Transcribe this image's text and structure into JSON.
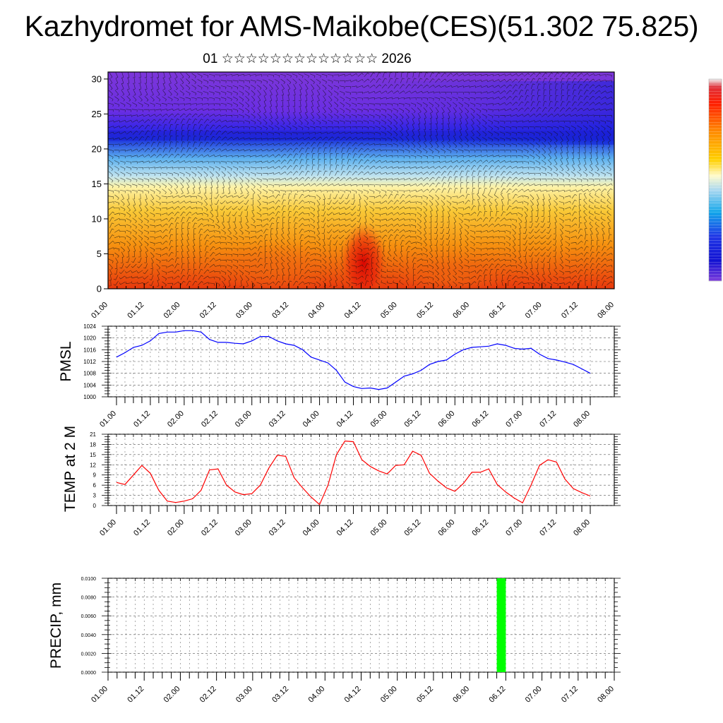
{
  "title": "Kazhydromet for AMS-Maikobe(CES)(51.302 75.825)",
  "subtitle": "01 ☆☆☆☆☆☆☆☆☆☆☆☆☆ 2026",
  "time_tick_labels": [
    "01.00",
    "01.12",
    "02.00",
    "02.12",
    "03.00",
    "03.12",
    "04.00",
    "04.12",
    "05.00",
    "05.12",
    "06.00",
    "06.12",
    "07.00",
    "07.12",
    "08.00"
  ],
  "colors": {
    "pmsl_line": "#0000ff",
    "temp_line": "#ff0000",
    "precip_bar": "#00ff00"
  },
  "chart_data": [
    {
      "type": "heatmap",
      "name": "vertical cross-section",
      "title": "",
      "xlabel": "",
      "ylabel": "",
      "x_ticks": [
        "01.00",
        "01.12",
        "02.00",
        "02.12",
        "03.00",
        "03.12",
        "04.00",
        "04.12",
        "05.00",
        "05.12",
        "06.00",
        "06.12",
        "07.00",
        "07.12",
        "08.00"
      ],
      "y_ticks": [
        0,
        5,
        10,
        15,
        20,
        25,
        30
      ],
      "ylim": [
        0,
        31
      ],
      "overlay": "wind barbs",
      "colorbar": "vertical, right side, red-orange-yellow-cyan-blue-purple"
    },
    {
      "type": "line",
      "name": "PMSL",
      "ylabel": "PMSL",
      "ylim": [
        1000,
        1024
      ],
      "y_ticks": [
        1000,
        1004,
        1008,
        1012,
        1016,
        1020,
        1024
      ],
      "x_hours": [
        0,
        3,
        6,
        9,
        12,
        15,
        18,
        21,
        24,
        27,
        30,
        33,
        36,
        39,
        42,
        45,
        48,
        51,
        54,
        57,
        60,
        63,
        66,
        69,
        72,
        75,
        78,
        81,
        84,
        87,
        90,
        93,
        96,
        99,
        102,
        105,
        108,
        111,
        114,
        117,
        120,
        123,
        126,
        129,
        132,
        135,
        138,
        141,
        144,
        147,
        150,
        153,
        156,
        159,
        162,
        165,
        168
      ],
      "values": [
        1013.5,
        1015,
        1016.8,
        1017.5,
        1019,
        1021.5,
        1022,
        1022,
        1022.5,
        1022.5,
        1022,
        1019.5,
        1018.5,
        1018.5,
        1018.2,
        1018,
        1019,
        1020.5,
        1020.5,
        1019,
        1018,
        1017.5,
        1016,
        1013.5,
        1012.5,
        1011.5,
        1009,
        1005,
        1003.5,
        1002.8,
        1003,
        1002.5,
        1003,
        1005,
        1007,
        1007.8,
        1009,
        1011,
        1012,
        1012.5,
        1014.5,
        1016,
        1016.8,
        1017,
        1017.2,
        1018,
        1017.5,
        1016.5,
        1016.2,
        1016.5,
        1014.5,
        1013,
        1012.5,
        1011.8,
        1011,
        1009.5,
        1008
      ]
    },
    {
      "type": "line",
      "name": "TEMP at 2 M",
      "ylabel": "TEMP at 2 M",
      "ylim": [
        0,
        21
      ],
      "y_ticks": [
        0,
        3,
        6,
        9,
        12,
        15,
        18,
        21
      ],
      "x_hours": [
        0,
        3,
        6,
        9,
        12,
        15,
        18,
        21,
        24,
        27,
        30,
        33,
        36,
        39,
        42,
        45,
        48,
        51,
        54,
        57,
        60,
        63,
        66,
        69,
        72,
        75,
        78,
        81,
        84,
        87,
        90,
        93,
        96,
        99,
        102,
        105,
        108,
        111,
        114,
        117,
        120,
        123,
        126,
        129,
        132,
        135,
        138,
        141,
        144,
        147,
        150,
        153,
        156,
        159,
        162,
        165,
        168
      ],
      "values": [
        6.8,
        6.2,
        9,
        11.8,
        9.5,
        4.5,
        1.3,
        0.9,
        1.3,
        2,
        4.5,
        10.5,
        10.8,
        6,
        4,
        3.2,
        3.5,
        6,
        11,
        14.8,
        14.5,
        8.2,
        5.2,
        2.5,
        0.3,
        6,
        15,
        19,
        18.8,
        13.5,
        11.5,
        10.2,
        9.3,
        11.8,
        12,
        16,
        14.8,
        9.5,
        7.2,
        5.2,
        4.2,
        6.5,
        9.8,
        9.8,
        10.8,
        6.2,
        4,
        2.2,
        0.8,
        6,
        11.8,
        13.5,
        12.8,
        7.8,
        5,
        3.8,
        2.8
      ]
    },
    {
      "type": "bar",
      "name": "PRECIP, mm",
      "ylabel": "PRECIP, mm",
      "ylim": [
        0,
        0.01
      ],
      "y_ticks": [
        "0.0000",
        "0.0020",
        "0.0040",
        "0.0060",
        "0.0080",
        "0.0100"
      ],
      "bars": [
        {
          "hour_start": 129,
          "hour_end": 132,
          "value": 0.01
        }
      ]
    }
  ]
}
